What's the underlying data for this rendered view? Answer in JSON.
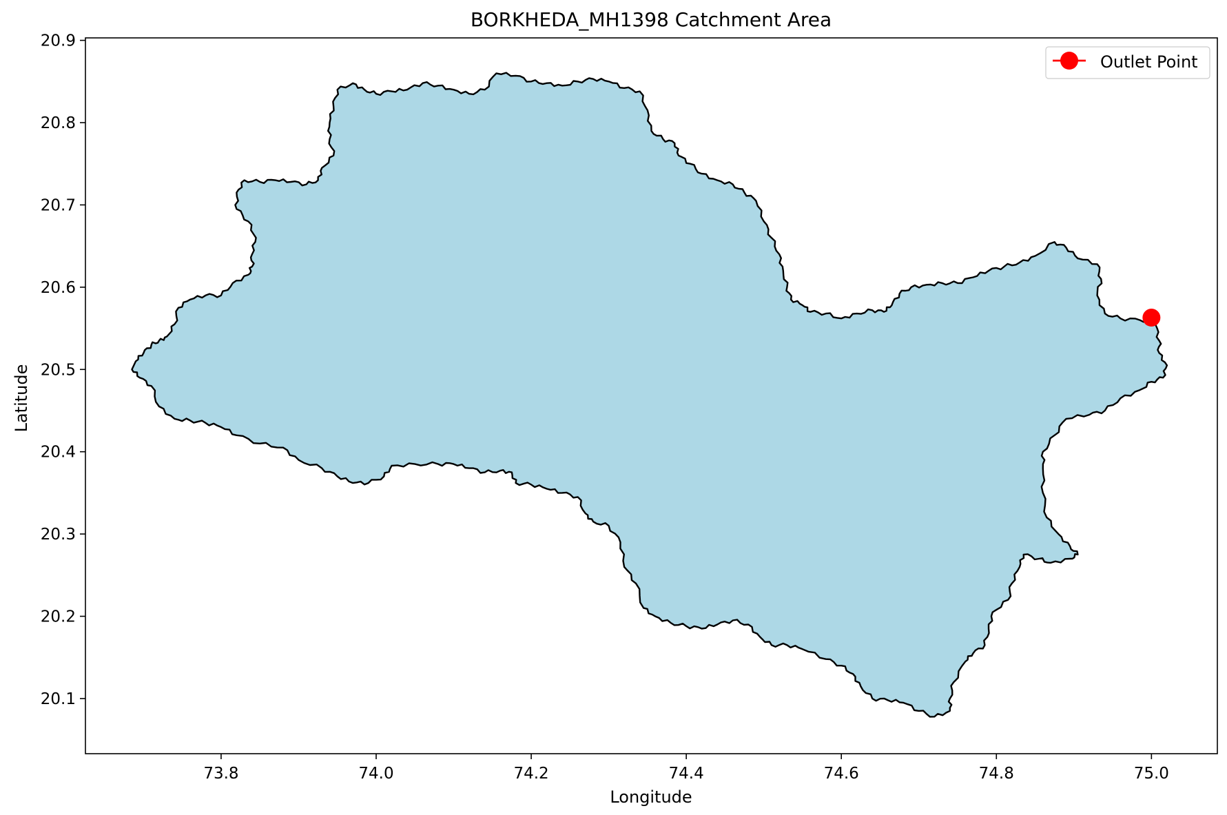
{
  "chart_data": {
    "type": "map",
    "title": "BORKHEDA_MH1398 Catchment Area",
    "xlabel": "Longitude",
    "ylabel": "Latitude",
    "xlim": [
      73.625,
      75.085
    ],
    "ylim": [
      20.033,
      20.903
    ],
    "xticks": [
      73.8,
      74.0,
      74.2,
      74.4,
      74.6,
      74.8,
      75.0
    ],
    "xtick_labels": [
      "73.8",
      "74.0",
      "74.2",
      "74.4",
      "74.6",
      "74.8",
      "75.0"
    ],
    "yticks": [
      20.1,
      20.2,
      20.3,
      20.4,
      20.5,
      20.6,
      20.7,
      20.8,
      20.9
    ],
    "ytick_labels": [
      "20.1",
      "20.2",
      "20.3",
      "20.4",
      "20.5",
      "20.6",
      "20.7",
      "20.8",
      "20.9"
    ],
    "grid": false,
    "legend_position": "top-right",
    "legend": [
      {
        "label": "Outlet Point",
        "color": "#ff0000",
        "marker": "circle"
      }
    ],
    "catchment": {
      "fill": "#add8e6",
      "edge": "#000000",
      "boundary": [
        [
          73.69,
          20.51
        ],
        [
          73.7,
          20.52
        ],
        [
          73.71,
          20.53
        ],
        [
          73.72,
          20.535
        ],
        [
          73.73,
          20.54
        ],
        [
          73.74,
          20.555
        ],
        [
          73.745,
          20.575
        ],
        [
          73.76,
          20.585
        ],
        [
          73.78,
          20.59
        ],
        [
          73.8,
          20.59
        ],
        [
          73.815,
          20.605
        ],
        [
          73.835,
          20.615
        ],
        [
          73.84,
          20.625
        ],
        [
          73.84,
          20.64
        ],
        [
          73.845,
          20.66
        ],
        [
          73.835,
          20.68
        ],
        [
          73.82,
          20.695
        ],
        [
          73.82,
          20.715
        ],
        [
          73.83,
          20.73
        ],
        [
          73.85,
          20.728
        ],
        [
          73.87,
          20.73
        ],
        [
          73.89,
          20.728
        ],
        [
          73.91,
          20.725
        ],
        [
          73.925,
          20.73
        ],
        [
          73.93,
          20.745
        ],
        [
          73.945,
          20.76
        ],
        [
          73.94,
          20.78
        ],
        [
          73.94,
          20.8
        ],
        [
          73.945,
          20.82
        ],
        [
          73.95,
          20.84
        ],
        [
          73.97,
          20.848
        ],
        [
          73.985,
          20.84
        ],
        [
          74.0,
          20.835
        ],
        [
          74.02,
          20.838
        ],
        [
          74.04,
          20.84
        ],
        [
          74.06,
          20.848
        ],
        [
          74.08,
          20.845
        ],
        [
          74.1,
          20.84
        ],
        [
          74.12,
          20.835
        ],
        [
          74.14,
          20.84
        ],
        [
          74.155,
          20.86
        ],
        [
          74.18,
          20.857
        ],
        [
          74.2,
          20.85
        ],
        [
          74.22,
          20.848
        ],
        [
          74.24,
          20.845
        ],
        [
          74.26,
          20.85
        ],
        [
          74.28,
          20.853
        ],
        [
          74.3,
          20.85
        ],
        [
          74.32,
          20.842
        ],
        [
          74.34,
          20.838
        ],
        [
          74.35,
          20.815
        ],
        [
          74.355,
          20.79
        ],
        [
          74.37,
          20.78
        ],
        [
          74.385,
          20.775
        ],
        [
          74.39,
          20.76
        ],
        [
          74.405,
          20.75
        ],
        [
          74.42,
          20.738
        ],
        [
          74.44,
          20.73
        ],
        [
          74.46,
          20.725
        ],
        [
          74.475,
          20.715
        ],
        [
          74.49,
          20.705
        ],
        [
          74.5,
          20.68
        ],
        [
          74.51,
          20.66
        ],
        [
          74.52,
          20.64
        ],
        [
          74.525,
          20.62
        ],
        [
          74.53,
          20.6
        ],
        [
          74.535,
          20.585
        ],
        [
          74.55,
          20.578
        ],
        [
          74.56,
          20.57
        ],
        [
          74.58,
          20.568
        ],
        [
          74.6,
          20.562
        ],
        [
          74.62,
          20.568
        ],
        [
          74.64,
          20.572
        ],
        [
          74.655,
          20.57
        ],
        [
          74.665,
          20.578
        ],
        [
          74.675,
          20.592
        ],
        [
          74.69,
          20.6
        ],
        [
          74.71,
          20.603
        ],
        [
          74.73,
          20.605
        ],
        [
          74.75,
          20.605
        ],
        [
          74.77,
          20.612
        ],
        [
          74.79,
          20.62
        ],
        [
          74.81,
          20.625
        ],
        [
          74.83,
          20.63
        ],
        [
          74.85,
          20.638
        ],
        [
          74.875,
          20.655
        ],
        [
          74.89,
          20.648
        ],
        [
          74.905,
          20.635
        ],
        [
          74.93,
          20.628
        ],
        [
          74.935,
          20.61
        ],
        [
          74.93,
          20.59
        ],
        [
          74.94,
          20.568
        ],
        [
          74.96,
          20.562
        ],
        [
          74.985,
          20.56
        ],
        [
          75.005,
          20.555
        ],
        [
          75.01,
          20.535
        ],
        [
          75.01,
          20.52
        ],
        [
          75.02,
          20.505
        ],
        [
          75.015,
          20.49
        ],
        [
          75.0,
          20.485
        ],
        [
          74.985,
          20.475
        ],
        [
          74.96,
          20.465
        ],
        [
          74.94,
          20.45
        ],
        [
          74.92,
          20.445
        ],
        [
          74.89,
          20.44
        ],
        [
          74.875,
          20.42
        ],
        [
          74.86,
          20.4
        ],
        [
          74.86,
          20.38
        ],
        [
          74.86,
          20.35
        ],
        [
          74.865,
          20.32
        ],
        [
          74.88,
          20.3
        ],
        [
          74.895,
          20.285
        ],
        [
          74.905,
          20.275
        ],
        [
          74.895,
          20.27
        ],
        [
          74.87,
          20.265
        ],
        [
          74.855,
          20.27
        ],
        [
          74.835,
          20.275
        ],
        [
          74.83,
          20.26
        ],
        [
          74.82,
          20.24
        ],
        [
          74.815,
          20.22
        ],
        [
          74.795,
          20.205
        ],
        [
          74.79,
          20.185
        ],
        [
          74.785,
          20.165
        ],
        [
          74.77,
          20.155
        ],
        [
          74.76,
          20.145
        ],
        [
          74.745,
          20.12
        ],
        [
          74.74,
          20.1
        ],
        [
          74.74,
          20.085
        ],
        [
          74.72,
          20.078
        ],
        [
          74.7,
          20.085
        ],
        [
          74.68,
          20.095
        ],
        [
          74.66,
          20.098
        ],
        [
          74.64,
          20.1
        ],
        [
          74.625,
          20.115
        ],
        [
          74.615,
          20.13
        ],
        [
          74.6,
          20.14
        ],
        [
          74.58,
          20.148
        ],
        [
          74.55,
          20.16
        ],
        [
          74.53,
          20.165
        ],
        [
          74.51,
          20.165
        ],
        [
          74.495,
          20.175
        ],
        [
          74.48,
          20.19
        ],
        [
          74.46,
          20.195
        ],
        [
          74.44,
          20.19
        ],
        [
          74.42,
          20.185
        ],
        [
          74.4,
          20.188
        ],
        [
          74.38,
          20.192
        ],
        [
          74.36,
          20.2
        ],
        [
          74.345,
          20.21
        ],
        [
          74.335,
          20.24
        ],
        [
          74.32,
          20.26
        ],
        [
          74.315,
          20.29
        ],
        [
          74.3,
          20.31
        ],
        [
          74.28,
          20.315
        ],
        [
          74.27,
          20.325
        ],
        [
          74.26,
          20.345
        ],
        [
          74.24,
          20.35
        ],
        [
          74.22,
          20.355
        ],
        [
          74.2,
          20.36
        ],
        [
          74.18,
          20.362
        ],
        [
          74.175,
          20.375
        ],
        [
          74.16,
          20.377
        ],
        [
          74.14,
          20.375
        ],
        [
          74.12,
          20.38
        ],
        [
          74.1,
          20.385
        ],
        [
          74.08,
          20.385
        ],
        [
          74.05,
          20.385
        ],
        [
          74.02,
          20.383
        ],
        [
          74.01,
          20.37
        ],
        [
          73.99,
          20.362
        ],
        [
          73.97,
          20.362
        ],
        [
          73.95,
          20.37
        ],
        [
          73.93,
          20.38
        ],
        [
          73.9,
          20.39
        ],
        [
          73.88,
          20.405
        ],
        [
          73.85,
          20.41
        ],
        [
          73.82,
          20.42
        ],
        [
          73.8,
          20.43
        ],
        [
          73.78,
          20.435
        ],
        [
          73.76,
          20.438
        ],
        [
          73.74,
          20.44
        ],
        [
          73.72,
          20.455
        ],
        [
          73.71,
          20.48
        ],
        [
          73.695,
          20.49
        ],
        [
          73.685,
          20.5
        ]
      ]
    },
    "outlet_point": {
      "name": "Outlet Point",
      "lon": 75.0,
      "lat": 20.563,
      "color": "#ff0000"
    }
  }
}
